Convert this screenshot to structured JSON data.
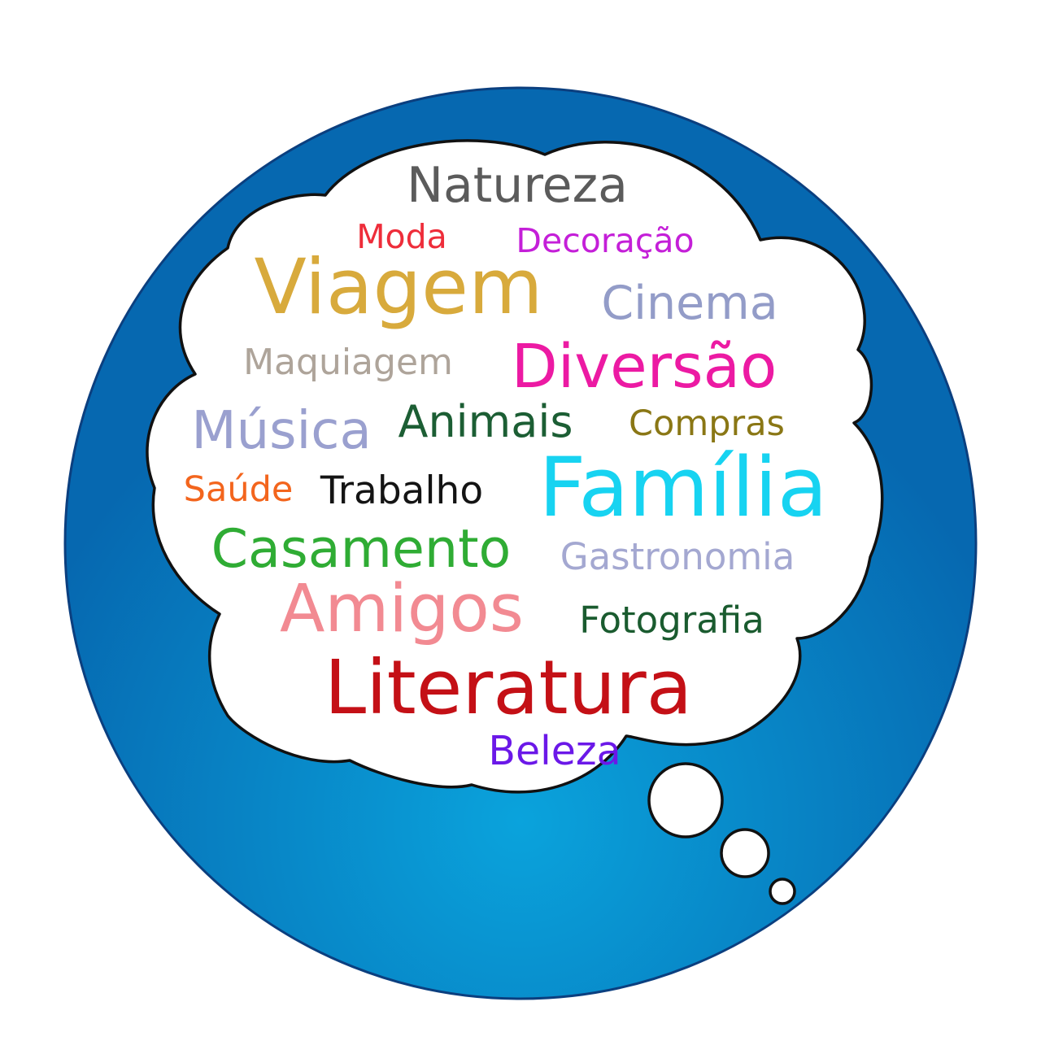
{
  "colors": {
    "circle_center": "#0aa3dc",
    "circle_edge": "#0668b0",
    "circle_outline": "#0b3f7f",
    "cloud_fill": "#ffffff",
    "cloud_outline": "#111111"
  },
  "words": [
    {
      "id": "natureza",
      "text": "Natureza",
      "color": "#5b5b5b"
    },
    {
      "id": "moda",
      "text": "Moda",
      "color": "#ee2d3a"
    },
    {
      "id": "decoracao",
      "text": "Decoração",
      "color": "#c41fd8"
    },
    {
      "id": "viagem",
      "text": "Viagem",
      "color": "#d8aa3c"
    },
    {
      "id": "cinema",
      "text": "Cinema",
      "color": "#939cc8"
    },
    {
      "id": "maquiagem",
      "text": "Maquiagem",
      "color": "#aea49a"
    },
    {
      "id": "diversao",
      "text": "Diversão",
      "color": "#ec1aa3"
    },
    {
      "id": "musica",
      "text": "Música",
      "color": "#9aa0cf"
    },
    {
      "id": "animais",
      "text": "Animais",
      "color": "#1c5e34"
    },
    {
      "id": "compras",
      "text": "Compras",
      "color": "#8a7715"
    },
    {
      "id": "saude",
      "text": "Saúde",
      "color": "#f3651d"
    },
    {
      "id": "trabalho",
      "text": "Trabalho",
      "color": "#141414"
    },
    {
      "id": "familia",
      "text": "Família",
      "color": "#17d3f1"
    },
    {
      "id": "casamento",
      "text": "Casamento",
      "color": "#2fac34"
    },
    {
      "id": "gastronomia",
      "text": "Gastronomia",
      "color": "#a4a8d1"
    },
    {
      "id": "amigos",
      "text": "Amigos",
      "color": "#f28a92"
    },
    {
      "id": "fotografia",
      "text": "Fotografia",
      "color": "#1a5b2f"
    },
    {
      "id": "literatura",
      "text": "Literatura",
      "color": "#c41016"
    },
    {
      "id": "beleza",
      "text": "Beleza",
      "color": "#6b18e8"
    }
  ]
}
